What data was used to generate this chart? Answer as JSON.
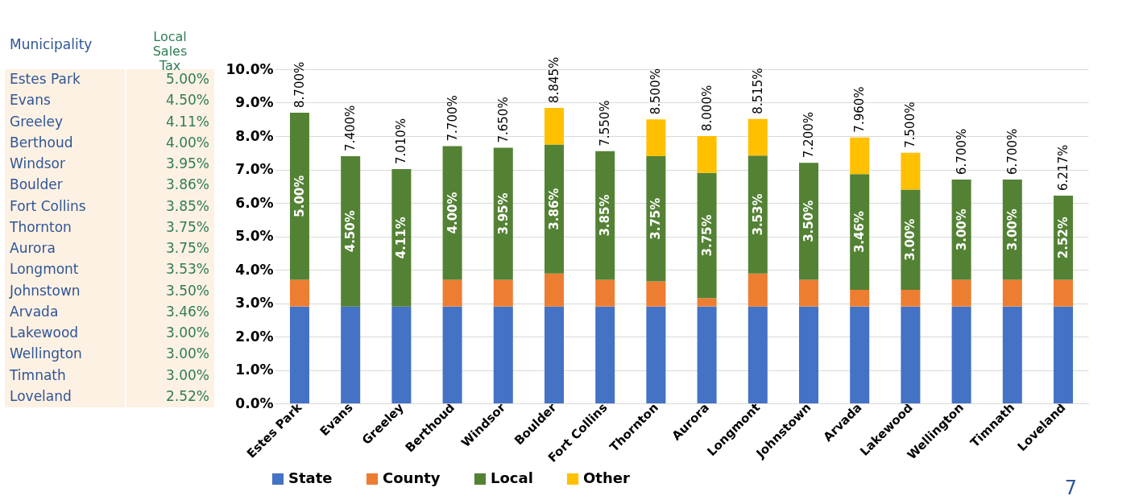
{
  "chart_data": [
    {
      "type": "other",
      "xlabel": "Municipality",
      "ylabel": "Local Sales Tax",
      "categories": [
        "Estes Park",
        "Evans",
        "Greeley",
        "Berthoud",
        "Windsor",
        "Boulder",
        "Fort Collins",
        "Thornton",
        "Aurora",
        "Longmont",
        "Johnstown",
        "Arvada",
        "Lakewood",
        "Wellington",
        "Timnath",
        "Loveland"
      ],
      "value_labels": [
        "5.00%",
        "4.50%",
        "4.11%",
        "4.00%",
        "3.95%",
        "3.86%",
        "3.85%",
        "3.75%",
        "3.75%",
        "3.53%",
        "3.50%",
        "3.46%",
        "3.00%",
        "3.00%",
        "3.00%",
        "2.52%"
      ]
    },
    {
      "type": "bar",
      "stacked": true,
      "grid": "y",
      "legend": "bottom",
      "categories": [
        "Estes Park",
        "Evans",
        "Greeley",
        "Berthoud",
        "Windsor",
        "Boulder",
        "Fort Collins",
        "Thornton",
        "Aurora",
        "Longmont",
        "Johnstown",
        "Arvada",
        "Lakewood",
        "Wellington",
        "Timnath",
        "Loveland"
      ],
      "series": [
        {
          "name": "State",
          "color": "#4472c4",
          "values": [
            2.9,
            2.9,
            2.9,
            2.9,
            2.9,
            2.9,
            2.9,
            2.9,
            2.9,
            2.9,
            2.9,
            2.9,
            2.9,
            2.9,
            2.9,
            2.9
          ]
        },
        {
          "name": "County",
          "color": "#ed7d31",
          "values": [
            0.8,
            null,
            null,
            0.8,
            0.8,
            0.985,
            0.8,
            0.75,
            0.25,
            0.985,
            0.8,
            0.5,
            0.5,
            0.8,
            0.8,
            0.8
          ]
        },
        {
          "name": "Local",
          "color": "#548235",
          "values": [
            5.0,
            4.5,
            4.11,
            4.0,
            3.95,
            3.86,
            3.85,
            3.75,
            3.75,
            3.53,
            3.5,
            3.46,
            3.0,
            3.0,
            3.0,
            2.517
          ],
          "value_labels": [
            "5.00%",
            "4.50%",
            "4.11%",
            "4.00%",
            "3.95%",
            "3.86%",
            "3.85%",
            "3.75%",
            "3.75%",
            "3.53%",
            "3.50%",
            "3.46%",
            "3.00%",
            "3.00%",
            "3.00%",
            "2.52%"
          ]
        },
        {
          "name": "Other",
          "color": "#ffc000",
          "values": [
            null,
            null,
            null,
            null,
            null,
            1.1,
            null,
            1.1,
            1.1,
            1.1,
            null,
            1.1,
            1.1,
            null,
            null,
            null
          ]
        }
      ],
      "totals": [
        "8.700%",
        "7.400%",
        "7.010%",
        "7.700%",
        "7.650%",
        "8.845%",
        "7.550%",
        "8.500%",
        "8.000%",
        "8.515%",
        "7.200%",
        "7.960%",
        "7.500%",
        "6.700%",
        "6.700%",
        "6.217%"
      ],
      "ylim": [
        0,
        10
      ],
      "yticks": [
        {
          "value": 0,
          "label": "0.0%"
        },
        {
          "value": 1,
          "label": "1.0%"
        },
        {
          "value": 2,
          "label": "2.0%"
        },
        {
          "value": 3,
          "label": "3.0%"
        },
        {
          "value": 4,
          "label": "4.0%"
        },
        {
          "value": 5,
          "label": "5.0%"
        },
        {
          "value": 6,
          "label": "6.0%"
        },
        {
          "value": 7,
          "label": "7.0%"
        },
        {
          "value": 8,
          "label": "8.0%"
        },
        {
          "value": 9,
          "label": "9.0%"
        },
        {
          "value": 10,
          "label": "10.0%"
        }
      ],
      "annotations": [
        {
          "text": "7"
        }
      ]
    }
  ]
}
